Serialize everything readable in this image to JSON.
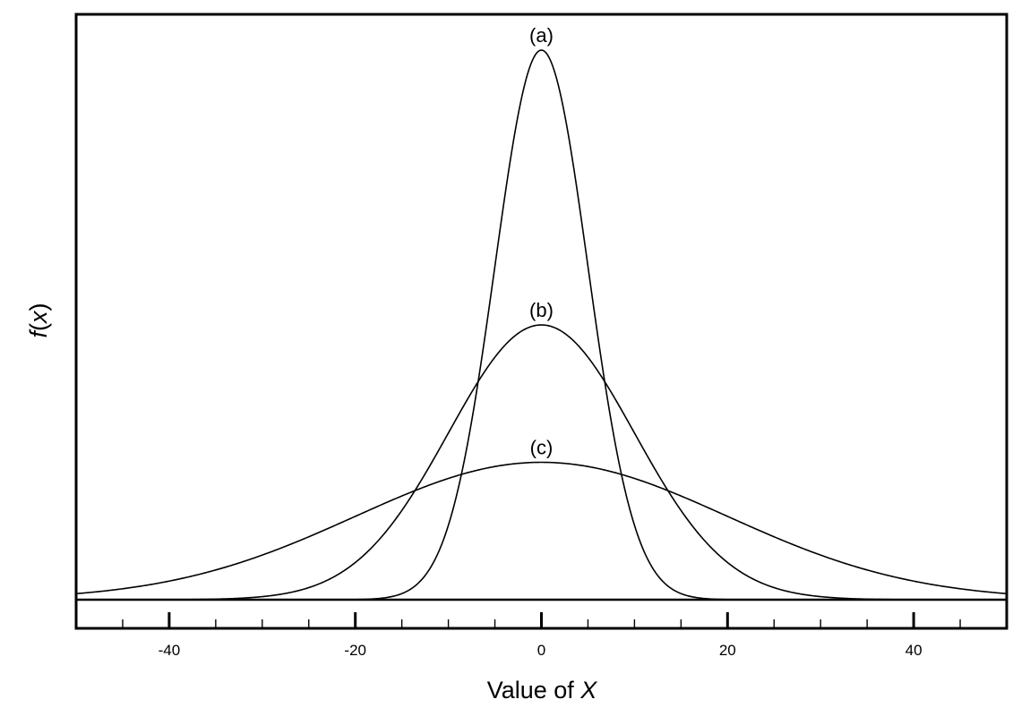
{
  "chart_data": {
    "type": "line",
    "title": "",
    "xlabel": "Value of X",
    "xlabel_parts": {
      "text": "Value of ",
      "var": "X"
    },
    "ylabel": "f(x)",
    "ylabel_parts": {
      "f": "f",
      "open": "(",
      "var": "x",
      "close": ")"
    },
    "xlim": [
      -50,
      50
    ],
    "ylim": [
      0,
      1
    ],
    "xticks_major": [
      -40,
      -20,
      0,
      20,
      40
    ],
    "xtick_labels": [
      "-40",
      "-20",
      "0",
      "20",
      "40"
    ],
    "xticks_minor_step": 5,
    "grid": false,
    "series": [
      {
        "label": "(a)",
        "distribution": "normal",
        "mean": 0,
        "sd": 5
      },
      {
        "label": "(b)",
        "distribution": "normal",
        "mean": 0,
        "sd": 10
      },
      {
        "label": "(c)",
        "distribution": "normal",
        "mean": 0,
        "sd": 20
      }
    ]
  }
}
